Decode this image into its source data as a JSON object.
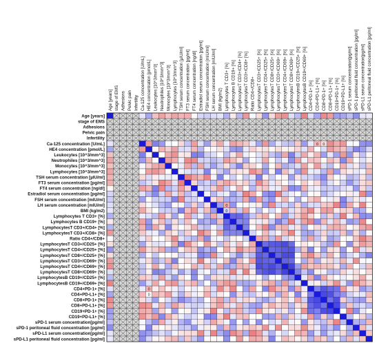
{
  "chart_data": {
    "type": "heatmap",
    "title": "",
    "xlabel": "",
    "ylabel": "",
    "x_tick_position": "top",
    "y_tick_position": "left",
    "labels": [
      "Age [years]",
      "stage of EMS",
      "Adhesions",
      "Pelvic pain",
      "Infertility",
      "Ca-125 concentration [U/mL]",
      "HE4 concentration [pmol/L]",
      "Leukocytes [10^3/mm^3]",
      "Neutrophiles [10^3/mm^3]",
      "Monocytes [10^3/mm^3]",
      "Lymphocytes [10^3/mm^3]",
      "TSH serum concentration [µIU/ml]",
      "FT3 serum concentration [pg/ml]",
      "FT4 serum concentration [ng/dl]",
      "Estradiol serum concentration [pg/ml]",
      "FSH serum concentration [mIU/ml]",
      "LH serum concentration [mIU/ml]",
      "BMI (kg/m2)",
      "Lymphocytes T CD3+ [%]",
      "Lymphocytes B CD19+ [%]",
      "LymphocytesT CD3+/CD4+ [%]",
      "LymphocytesT CD3+/CD8+ [%]",
      "Ratio CD4+/CD8+",
      "LymphocytesT CD3+/CD25+ [%]",
      "LymphocytesT CD4+/CD25+ [%]",
      "LymphocytesT CD8+/CD25+ [%]",
      "LymphocytesT CD3+/CD69+ [%]",
      "LymphocytesT CD4+/CD69+ [%]",
      "LymphocytesT CD8+/CD69+ [%]",
      "LymphocytesB CD19+/CD25+ [%]",
      "LymphocytesB CD19+/CD69+ [%]",
      "CD4+PD-1+ [%]",
      "CD4+PD-L1+ [%]",
      "CD8+PD-1+ [%]",
      "CD8+PD-L1+ [%]",
      "CD19+PD-1+ [%]",
      "CD19+PD-L1+ [%]",
      "sPD-1 serum concentration[pg/ml]",
      "sPD-1 peritoneal fluid concentration [pg/ml]",
      "sPD-L1 serum concentration[pg/ml]",
      "sPD-L1 peritoneal fluid concentration [pg/ml]"
    ],
    "value_range": [
      -1,
      1
    ],
    "color_scale": {
      "negative": "#d7191c",
      "zero": "#ffffff",
      "positive": "#1a1adc"
    },
    "not_computed_color": "#d8d8d8",
    "not_computed_variables": [
      "stage of EMS",
      "Adhesions",
      "Pelvic pain",
      "Infertility"
    ],
    "diagonal_value": 1,
    "visible_cell_labels": [
      {
        "row": "Ca-125 concentration [U/mL]",
        "col": "CD4+PD-L1+ [%]",
        "text": "0"
      },
      {
        "row": "Ca-125 concentration [U/mL]",
        "col": "CD8+PD-1+ [%]",
        "text": "0"
      },
      {
        "row": "LH serum concentration [mIU/ml]",
        "col": "Lymphocytes T CD3+ [%]",
        "text": "0"
      },
      {
        "row": "BMI (kg/m2)",
        "col": "Lymphocytes T CD3+ [%]",
        "text": "0"
      },
      {
        "row": "CD4+PD-1+ [%]",
        "col": "HE4 concentration [pmol/L]",
        "text": "0"
      },
      {
        "row": "CD4+PD-L1+ [%]",
        "col": "HE4 concentration [pmol/L]",
        "text": "0"
      }
    ],
    "strong_positive_blocks": [
      {
        "rows": [
          "Lymphocytes T CD3+ [%]",
          "LymphocytesT CD3+/CD8+ [%]"
        ],
        "cols": [
          "Lymphocytes T CD3+ [%]",
          "LymphocytesT CD3+/CD8+ [%]"
        ],
        "value": 0.75
      },
      {
        "rows": [
          "LymphocytesT CD3+/CD25+ [%]",
          "LymphocytesT CD8+/CD69+ [%]"
        ],
        "cols": [
          "LymphocytesT CD3+/CD25+ [%]",
          "LymphocytesT CD8+/CD69+ [%]"
        ],
        "value": 0.85
      },
      {
        "rows": [
          "CD4+PD-1+ [%]",
          "CD19+PD-1+ [%]"
        ],
        "cols": [
          "CD4+PD-1+ [%]",
          "CD19+PD-1+ [%]"
        ],
        "value": 0.8
      }
    ],
    "matrix_note": "Symmetric correlation matrix; off-diagonal values range from about -0.6 (red) to +0.6 (blue), mostly weak."
  }
}
